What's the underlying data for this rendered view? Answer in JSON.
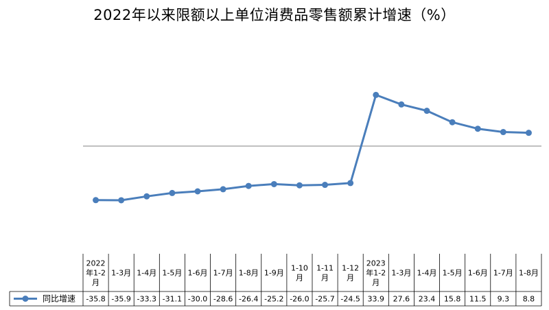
{
  "chart_data": {
    "type": "line",
    "title": "2022年以来限额以上单位消费品零售额累计增速（%）",
    "categories": [
      "2022年1-2月",
      "1-3月",
      "1-4月",
      "1-5月",
      "1-6月",
      "1-7月",
      "1-8月",
      "1-9月",
      "1-10月",
      "1-11月",
      "1-12月",
      "2023年1-2月",
      "1-3月",
      "1-4月",
      "1-5月",
      "1-6月",
      "1-7月",
      "1-8月"
    ],
    "series": [
      {
        "name": "同比增速",
        "values": [
          -35.8,
          -35.9,
          -33.3,
          -31.1,
          -30.0,
          -28.6,
          -26.4,
          -25.2,
          -26.0,
          -25.7,
          -24.5,
          33.9,
          27.6,
          23.4,
          15.8,
          11.5,
          9.3,
          8.8
        ]
      }
    ],
    "value_labels": [
      "-35.8",
      "-35.9",
      "-33.3",
      "-31.1",
      "-30.0",
      "-28.6",
      "-26.4",
      "-25.2",
      "-26.0",
      "-25.7",
      "-24.5",
      "33.9",
      "27.6",
      "23.4",
      "15.8",
      "11.5",
      "9.3",
      "8.8"
    ],
    "line_color": "#4a7ebb",
    "zero_line_color": "#808080",
    "legend_position": "data-table",
    "grid": false
  }
}
